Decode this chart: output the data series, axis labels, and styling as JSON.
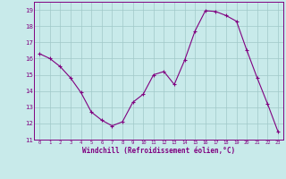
{
  "x": [
    0,
    1,
    2,
    3,
    4,
    5,
    6,
    7,
    8,
    9,
    10,
    11,
    12,
    13,
    14,
    15,
    16,
    17,
    18,
    19,
    20,
    21,
    22,
    23
  ],
  "y": [
    16.3,
    16.0,
    15.5,
    14.8,
    13.9,
    12.7,
    12.2,
    11.85,
    12.1,
    13.3,
    13.8,
    15.0,
    15.2,
    14.4,
    15.9,
    17.7,
    18.95,
    18.9,
    18.65,
    18.3,
    16.5,
    14.8,
    13.2,
    11.5
  ],
  "line_color": "#800080",
  "marker": "+",
  "bg_color": "#c8eaea",
  "grid_color": "#a0c8c8",
  "xlabel": "Windchill (Refroidissement éolien,°C)",
  "xlabel_color": "#800080",
  "ylim": [
    11,
    19.5
  ],
  "yticks": [
    11,
    12,
    13,
    14,
    15,
    16,
    17,
    18,
    19
  ],
  "xticks": [
    0,
    1,
    2,
    3,
    4,
    5,
    6,
    7,
    8,
    9,
    10,
    11,
    12,
    13,
    14,
    15,
    16,
    17,
    18,
    19,
    20,
    21,
    22,
    23
  ],
  "tick_label_color": "#800080",
  "spine_color": "#800080"
}
